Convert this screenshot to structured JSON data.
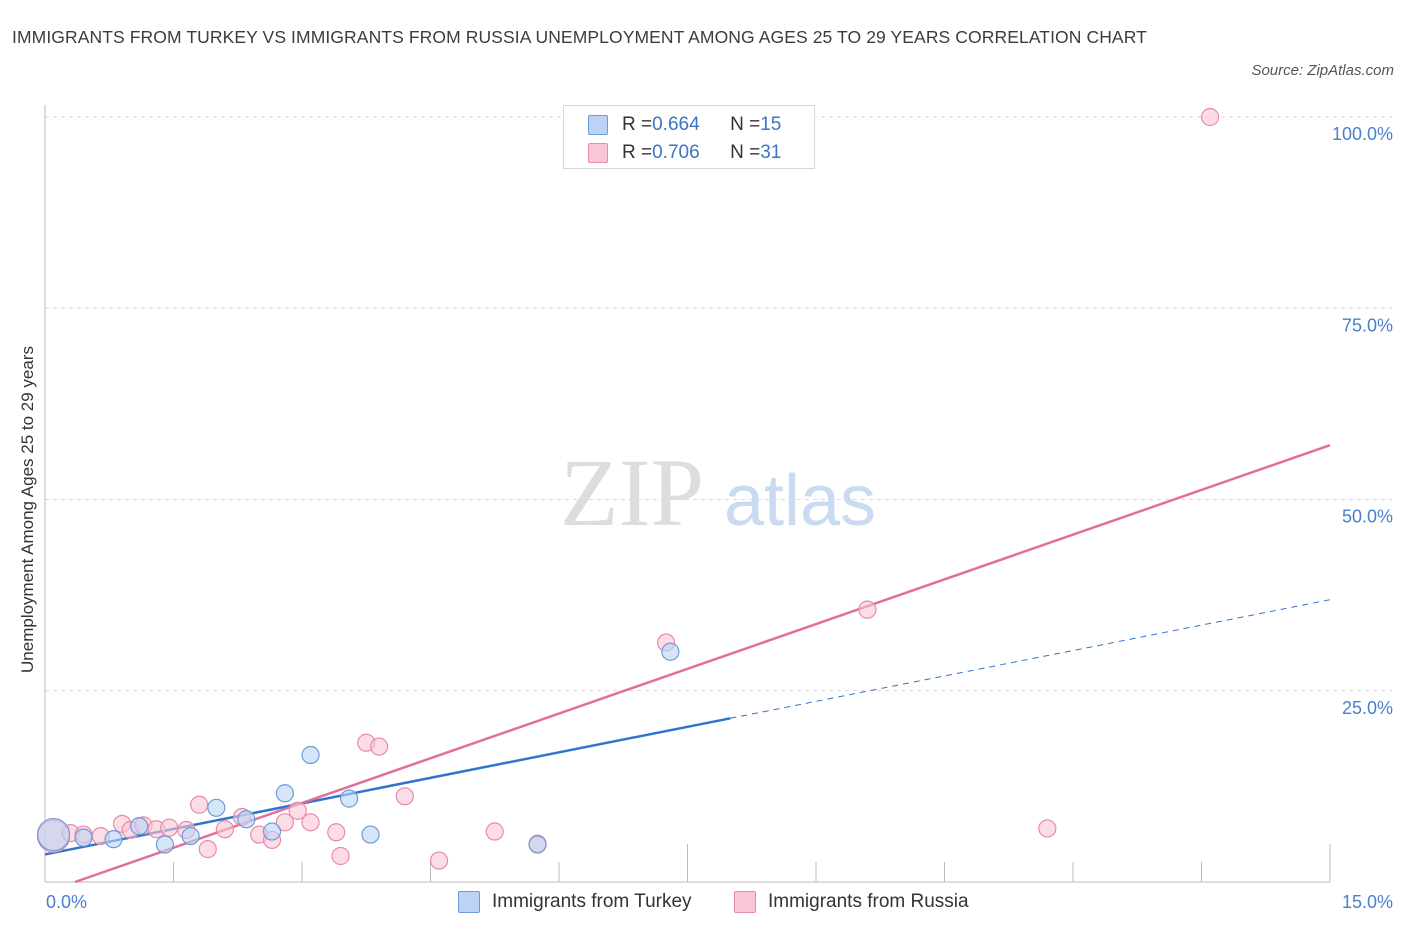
{
  "title": "IMMIGRANTS FROM TURKEY VS IMMIGRANTS FROM RUSSIA UNEMPLOYMENT AMONG AGES 25 TO 29 YEARS CORRELATION CHART",
  "source": "Source: ZipAtlas.com",
  "watermark": {
    "zip": "ZIP",
    "atlas": "atlas"
  },
  "legend": {
    "turkey": {
      "r_label": "R = ",
      "r_value": "0.664",
      "n_label": "N = ",
      "n_value": "15"
    },
    "russia": {
      "r_label": "R = ",
      "r_value": "0.706",
      "n_label": "N = ",
      "n_value": "31"
    }
  },
  "colors": {
    "turkey_fill": "#bcd3f5",
    "turkey_stroke": "#6f9ad8",
    "turkey_line": "#2f74cf",
    "russia_fill": "#f8c6d6",
    "russia_stroke": "#e98aa9",
    "russia_line": "#e0709a",
    "grid": "#d9d9d9",
    "axis_text": "#4a7fcb"
  },
  "chart_data": {
    "type": "scatter",
    "title": "IMMIGRANTS FROM TURKEY VS IMMIGRANTS FROM RUSSIA UNEMPLOYMENT AMONG AGES 25 TO 29 YEARS CORRELATION CHART",
    "xlabel": "",
    "ylabel": "Unemployment Among Ages 25 to 29 years",
    "xlim": [
      0,
      15
    ],
    "ylim": [
      0,
      100
    ],
    "x_tick_labels": [
      "0.0%",
      "15.0%"
    ],
    "y_ticks": [
      25,
      50,
      75,
      100
    ],
    "y_tick_labels": [
      "25.0%",
      "50.0%",
      "75.0%",
      "100.0%"
    ],
    "grid": true,
    "series": [
      {
        "name": "Immigrants from Turkey",
        "points": [
          {
            "x": 0.1,
            "y": 6.2,
            "big": true
          },
          {
            "x": 0.45,
            "y": 5.8
          },
          {
            "x": 0.8,
            "y": 5.6
          },
          {
            "x": 1.1,
            "y": 7.3
          },
          {
            "x": 1.4,
            "y": 4.9
          },
          {
            "x": 1.7,
            "y": 6.0
          },
          {
            "x": 2.0,
            "y": 9.7
          },
          {
            "x": 2.35,
            "y": 8.2
          },
          {
            "x": 2.65,
            "y": 6.6
          },
          {
            "x": 2.8,
            "y": 11.6
          },
          {
            "x": 3.1,
            "y": 16.6
          },
          {
            "x": 3.55,
            "y": 10.9
          },
          {
            "x": 3.8,
            "y": 6.2
          },
          {
            "x": 5.75,
            "y": 4.9
          },
          {
            "x": 7.3,
            "y": 30.1
          }
        ],
        "trend": {
          "x_start": 0,
          "y_start": 3.6,
          "x_solid_end": 8.0,
          "y_solid_end": 21.4,
          "x_end": 15,
          "y_end": 36.9
        }
      },
      {
        "name": "Immigrants from Russia",
        "points": [
          {
            "x": 0.1,
            "y": 6.0,
            "big": true
          },
          {
            "x": 0.3,
            "y": 6.4
          },
          {
            "x": 0.45,
            "y": 6.2
          },
          {
            "x": 0.65,
            "y": 6.0
          },
          {
            "x": 0.9,
            "y": 7.6
          },
          {
            "x": 1.0,
            "y": 6.8
          },
          {
            "x": 1.15,
            "y": 7.4
          },
          {
            "x": 1.3,
            "y": 6.9
          },
          {
            "x": 1.45,
            "y": 7.1
          },
          {
            "x": 1.65,
            "y": 6.8
          },
          {
            "x": 1.8,
            "y": 10.1
          },
          {
            "x": 1.9,
            "y": 4.3
          },
          {
            "x": 2.1,
            "y": 6.9
          },
          {
            "x": 2.3,
            "y": 8.5
          },
          {
            "x": 2.5,
            "y": 6.2
          },
          {
            "x": 2.65,
            "y": 5.5
          },
          {
            "x": 2.8,
            "y": 7.8
          },
          {
            "x": 2.95,
            "y": 9.3
          },
          {
            "x": 3.1,
            "y": 7.8
          },
          {
            "x": 3.4,
            "y": 6.5
          },
          {
            "x": 3.45,
            "y": 3.4
          },
          {
            "x": 3.75,
            "y": 18.2
          },
          {
            "x": 3.9,
            "y": 17.7
          },
          {
            "x": 4.2,
            "y": 11.2
          },
          {
            "x": 4.6,
            "y": 2.8
          },
          {
            "x": 5.25,
            "y": 6.6
          },
          {
            "x": 5.75,
            "y": 5.0
          },
          {
            "x": 7.25,
            "y": 31.3
          },
          {
            "x": 9.6,
            "y": 35.6
          },
          {
            "x": 11.7,
            "y": 7.0
          },
          {
            "x": 13.6,
            "y": 100.0
          }
        ],
        "trend": {
          "x_start": 0.35,
          "y_start": 0,
          "x_end": 15,
          "y_end": 57.1
        }
      }
    ]
  },
  "bottom_legend": [
    "Immigrants from Turkey",
    "Immigrants from Russia"
  ]
}
